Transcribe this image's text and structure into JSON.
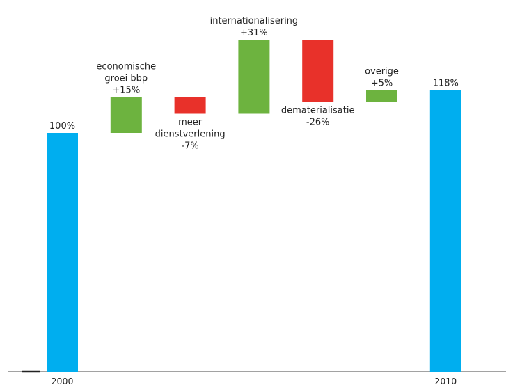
{
  "chart_data": {
    "type": "waterfall",
    "title": "",
    "xlabel": "",
    "ylabel": "",
    "ylim": [
      0,
      150
    ],
    "grid": false,
    "legend": "none",
    "colors": {
      "total": "#00AEEF",
      "increase": "#6DB33F",
      "decrease": "#E8312A"
    },
    "steps": [
      {
        "kind": "total",
        "tick": "2000",
        "value": 100,
        "label": [
          "100%"
        ]
      },
      {
        "kind": "increase",
        "tick": "",
        "value": 15,
        "label": [
          "economische",
          "groei bbp",
          "+15%"
        ]
      },
      {
        "kind": "decrease",
        "tick": "",
        "value": -7,
        "label": [
          "meer",
          "dienstverlening",
          "-7%"
        ]
      },
      {
        "kind": "increase",
        "tick": "",
        "value": 31,
        "label": [
          "internationalisering",
          "+31%"
        ]
      },
      {
        "kind": "decrease",
        "tick": "",
        "value": -26,
        "label": [
          "dematerialisatie",
          "-26%"
        ]
      },
      {
        "kind": "increase",
        "tick": "",
        "value": 5,
        "label": [
          "overige",
          "+5%"
        ]
      },
      {
        "kind": "total",
        "tick": "2010",
        "value": 118,
        "label": [
          "118%"
        ]
      }
    ]
  }
}
